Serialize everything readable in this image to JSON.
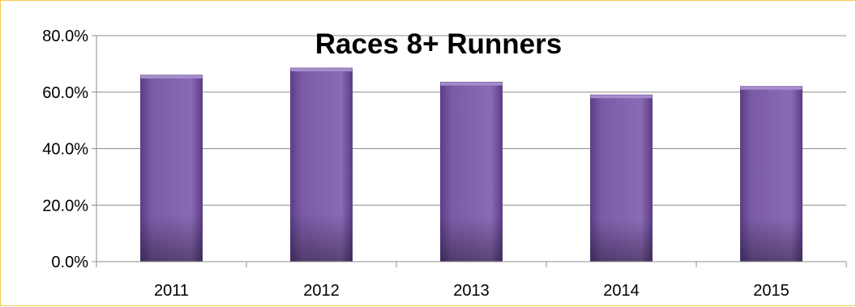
{
  "chart_data": {
    "type": "bar",
    "title": "Races 8+ Runners",
    "categories": [
      "2011",
      "2012",
      "2013",
      "2014",
      "2015"
    ],
    "values": [
      66.0,
      68.5,
      63.5,
      59.0,
      62.0
    ],
    "ylim": [
      0,
      80
    ],
    "y_ticks": [
      "0.0%",
      "20.0%",
      "40.0%",
      "60.0%",
      "80.0%"
    ],
    "y_tick_values": [
      0,
      20,
      40,
      60,
      80
    ],
    "grid": true,
    "legend": "none",
    "bar_color": "#7b5aa6"
  }
}
